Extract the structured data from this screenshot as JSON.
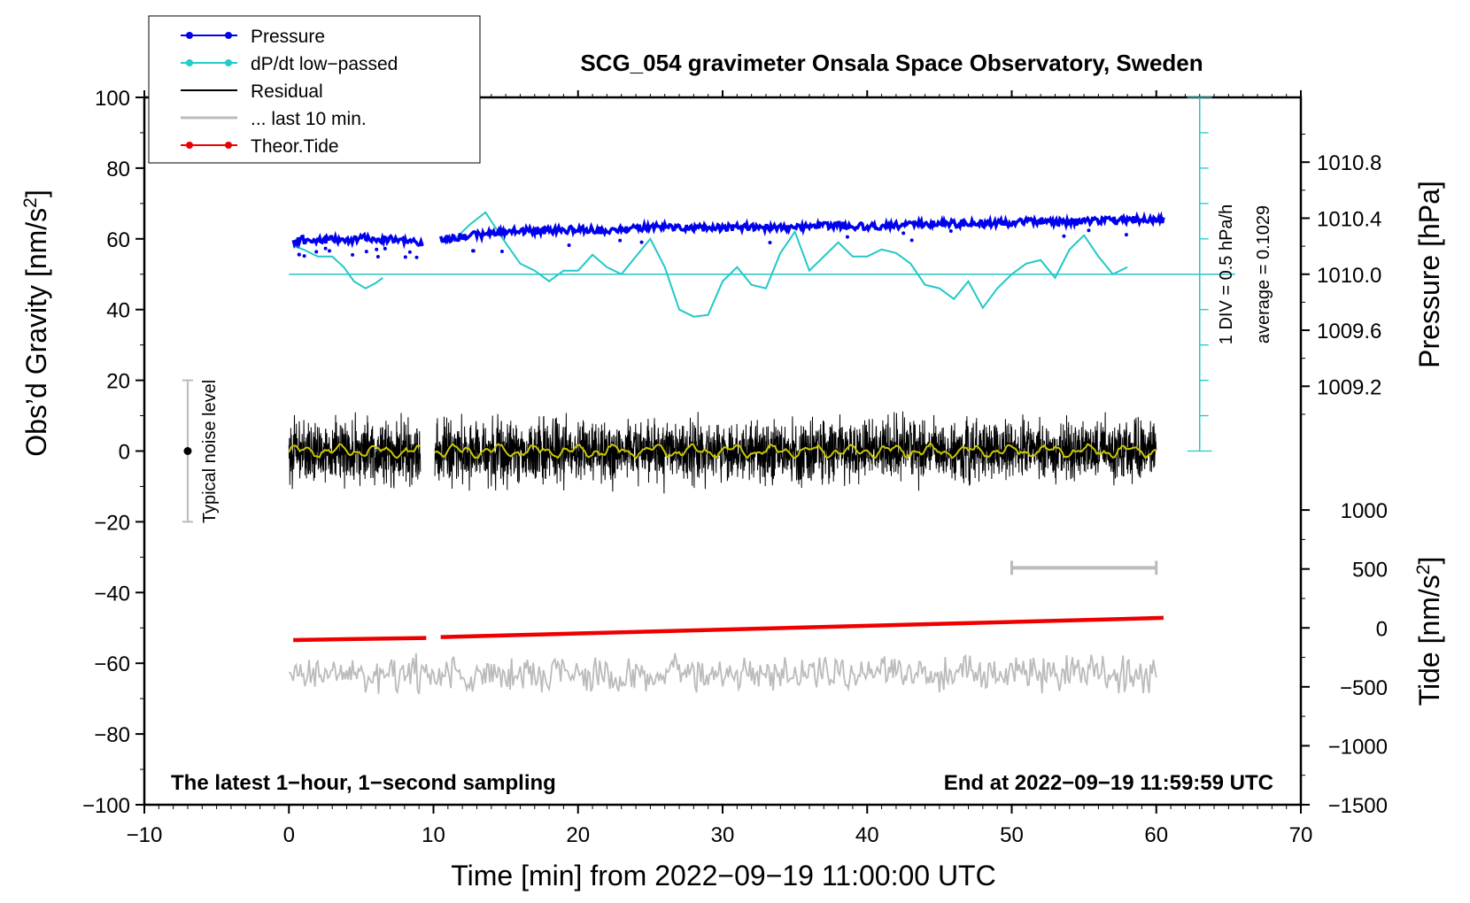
{
  "chart_data": {
    "type": "line",
    "title": "SCG_054 gravimeter Onsala Space Observatory, Sweden",
    "xlabel": "Time [min] from 2022−09−19 11:00:00 UTC",
    "ylabel_left_text": "Obs’d Gravity [nm/s",
    "ylabel_left_sup": "2",
    "ylabel_left_close": "]",
    "ylabel_right_upper": "Pressure [hPa]",
    "ylabel_right_lower_text": "Tide [nm/s",
    "ylabel_right_lower_sup": "2",
    "ylabel_right_lower_close": "]",
    "xlim": [
      -10,
      70
    ],
    "ylim": [
      -100,
      100
    ],
    "x_ticks": [
      -10,
      0,
      10,
      20,
      30,
      40,
      50,
      60,
      70
    ],
    "x_tick_labels": [
      "−10",
      "0",
      "10",
      "20",
      "30",
      "40",
      "50",
      "60",
      "70"
    ],
    "y_ticks": [
      -100,
      -80,
      -60,
      -40,
      -20,
      0,
      20,
      40,
      60,
      80,
      100
    ],
    "y_tick_labels": [
      "−100",
      "−80",
      "−60",
      "−40",
      "−20",
      "0",
      "20",
      "40",
      "60",
      "80",
      "100"
    ],
    "pressure_axis": {
      "ticks": [
        1009.2,
        1009.6,
        1010.0,
        1010.4,
        1010.8
      ],
      "tick_labels": [
        "1009.2",
        "1009.6",
        "1010.0",
        "1010.4",
        "1010.8"
      ],
      "ref_pressure": 1010.0,
      "ref_gravity": 50,
      "gravity_per_hpa": 39.6
    },
    "tide_axis": {
      "ticks": [
        -1500,
        -1000,
        -500,
        0,
        500,
        1000
      ],
      "tick_labels": [
        "−1500",
        "−1000",
        "−500",
        "0",
        "500",
        "1000"
      ],
      "ref_tide": 0,
      "ref_gravity": -50,
      "gravity_per_unit": 0.03333
    },
    "legend": [
      {
        "label": "Pressure",
        "color": "#0000ee",
        "marker": true
      },
      {
        "label": "dP/dt low−passed",
        "color": "#22cccc",
        "marker": true
      },
      {
        "label": "Residual",
        "color": "#000000",
        "marker": false
      },
      {
        "label": "... last 10 min.",
        "color": "#bbbbbb",
        "marker": false
      },
      {
        "label": "Theor.Tide",
        "color": "#ee0000",
        "marker": true
      }
    ],
    "colors": {
      "pressure": "#0000ee",
      "dpdt": "#22c8c8",
      "residual": "#000000",
      "residual_smooth": "#c8c800",
      "tide": "#ee0000",
      "last10": "#bbbbbb",
      "noise": "#bbbbbb"
    },
    "notes": {
      "left": "The latest 1−hour, 1−second sampling",
      "right": "End at 2022−09−19 11:59:59 UTC",
      "dpdt_scale": "1 DIV = 0.5 hPa/h",
      "dpdt_average": "average = 0.1029",
      "noise_label": "Typical noise level"
    },
    "noise_bar": {
      "x": -7,
      "center": 0,
      "low": -20,
      "high": 20
    },
    "last10_bar": {
      "x_start": 50,
      "x_end": 60,
      "gravity": -33
    },
    "dpdt_scale_bar": {
      "x": 63,
      "bottom": 0,
      "top": 100,
      "divisions": 10,
      "baseline_gravity": 50
    },
    "series": [
      {
        "name": "Pressure",
        "unit": "hPa",
        "segments": [
          {
            "x": [
              0.3,
              1,
              2,
              3,
              4,
              5,
              6,
              7,
              8,
              9.3
            ],
            "y": [
              1010.23,
              1010.25,
              1010.24,
              1010.25,
              1010.24,
              1010.26,
              1010.25,
              1010.25,
              1010.24,
              1010.22
            ]
          },
          {
            "x": [
              10.5,
              12,
              14,
              16,
              18,
              20,
              22,
              24,
              26,
              28,
              30,
              32,
              34,
              36,
              38,
              40,
              42,
              44,
              46,
              48,
              50,
              52,
              54,
              56,
              58,
              60.5
            ],
            "y": [
              1010.25,
              1010.27,
              1010.29,
              1010.31,
              1010.31,
              1010.32,
              1010.31,
              1010.33,
              1010.34,
              1010.33,
              1010.33,
              1010.34,
              1010.33,
              1010.34,
              1010.35,
              1010.34,
              1010.35,
              1010.36,
              1010.36,
              1010.36,
              1010.37,
              1010.38,
              1010.37,
              1010.38,
              1010.39,
              1010.39
            ]
          }
        ]
      },
      {
        "name": "dP/dt low-passed",
        "unit": "gravity-axis",
        "segments": [
          {
            "x": [
              0.3,
              1,
              2,
              3,
              3.8,
              4.5,
              5.3,
              6,
              6.5
            ],
            "y": [
              58,
              57,
              55,
              55,
              52,
              48,
              46,
              47.5,
              49
            ]
          },
          {
            "x": [
              10.5,
              11.5,
              12.5,
              13.6,
              14.8,
              16,
              17,
              18,
              19,
              20,
              21,
              22,
              23,
              24,
              25,
              26,
              27,
              28,
              29,
              30,
              31,
              32,
              33,
              34,
              35,
              36,
              37,
              38,
              39,
              40,
              41,
              42,
              43,
              44,
              45,
              46,
              47,
              48,
              49,
              50,
              51,
              52,
              53,
              54,
              55,
              56,
              57,
              58
            ],
            "y": [
              59,
              60,
              64,
              67.5,
              60,
              53,
              51,
              48,
              51,
              51,
              55.5,
              52,
              50,
              55,
              60,
              52,
              40,
              38,
              38.5,
              48,
              52,
              47,
              46,
              56,
              62,
              51,
              55,
              59,
              55,
              55,
              57,
              56,
              53,
              47,
              46,
              43,
              48,
              40.5,
              46,
              50,
              53,
              54,
              49,
              57,
              61,
              55,
              50,
              52
            ]
          }
        ]
      },
      {
        "name": "Residual",
        "unit": "nm/s^2",
        "amplitude": 7,
        "segments": [
          {
            "x_start": 0,
            "x_end": 9.1
          },
          {
            "x_start": 10.1,
            "x_end": 60
          }
        ]
      },
      {
        "name": "Theor.Tide",
        "unit": "nm/s^2",
        "segments": [
          {
            "x": [
              0.3,
              9.5
            ],
            "y": [
              -103,
              -85
            ]
          },
          {
            "x": [
              10.5,
              60.5
            ],
            "y": [
              -78,
              85
            ]
          }
        ]
      },
      {
        "name": "... last 10 min.",
        "unit": "gravity-axis",
        "offset": -63,
        "amplitude": 5,
        "segments": [
          {
            "x_start": 0,
            "x_end": 60
          }
        ]
      }
    ]
  }
}
